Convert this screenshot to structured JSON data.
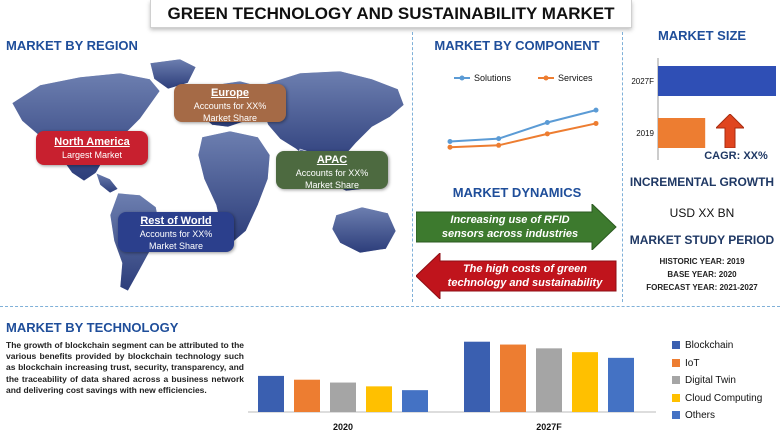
{
  "title": "GREEN TECHNOLOGY AND SUSTAINABILITY MARKET",
  "region": {
    "title": "MARKET BY REGION",
    "north_america": {
      "name": "North America",
      "desc": "Largest Market"
    },
    "europe": {
      "name": "Europe",
      "desc1": "Accounts for XX%",
      "desc2": "Market Share"
    },
    "apac": {
      "name": "APAC",
      "desc1": "Accounts for XX%",
      "desc2": "Market Share"
    },
    "rest_of_world": {
      "name": "Rest of World",
      "desc1": "Accounts for XX%",
      "desc2": "Market Share"
    }
  },
  "component": {
    "title": "MARKET BY COMPONENT",
    "chart_data": {
      "type": "line",
      "title": "",
      "x": [
        1,
        2,
        3,
        4
      ],
      "series": [
        {
          "name": "Solutions",
          "color": "#5b9bd5",
          "values": [
            3.0,
            3.3,
            5.0,
            6.3
          ]
        },
        {
          "name": "Services",
          "color": "#ed7d31",
          "values": [
            2.4,
            2.6,
            3.8,
            4.9
          ]
        }
      ],
      "ylim": [
        0,
        8
      ]
    }
  },
  "size": {
    "title": "MARKET SIZE",
    "cagr": "CAGR: XX%",
    "chart_data": {
      "type": "bar",
      "categories": [
        "2027F",
        "2019"
      ],
      "values": [
        100,
        40
      ],
      "colors": [
        "#2f4fb5",
        "#ed7d31"
      ],
      "xlim": [
        0,
        100
      ]
    }
  },
  "dynamics": {
    "title": "MARKET DYNAMICS",
    "driver": "Increasing use of RFID sensors across industries",
    "challenge": "The high costs of green technology and sustainability  solutions",
    "driver_color": "#3d7a2e",
    "challenge_color": "#c0141c"
  },
  "incremental": {
    "title": "INCREMENTAL GROWTH",
    "value": "USD XX BN"
  },
  "study_period": {
    "title": "MARKET STUDY PERIOD",
    "historic": "HISTORIC YEAR: 2019",
    "base": "BASE YEAR: 2020",
    "forecast": "FORECAST YEAR: 2021-2027"
  },
  "technology": {
    "title": "MARKET BY TECHNOLOGY",
    "text": "The growth of blockchain segment can be attributed to the various benefits provided by blockchain technology such as blockchain increasing trust, security, transparency, and the traceability of data shared across a business network and delivering cost savings with new efficiencies.",
    "chart_data": {
      "type": "bar",
      "categories": [
        "2020",
        "2027F"
      ],
      "series": [
        {
          "name": "Blockchain",
          "color": "#3a5fb0",
          "values": [
            38,
            74
          ]
        },
        {
          "name": "IoT",
          "color": "#ed7d31",
          "values": [
            34,
            71
          ]
        },
        {
          "name": "Digital Twin",
          "color": "#a5a5a5",
          "values": [
            31,
            67
          ]
        },
        {
          "name": "Cloud Computing",
          "color": "#ffc000",
          "values": [
            27,
            63
          ]
        },
        {
          "name": "Others",
          "color": "#4472c4",
          "values": [
            23,
            57
          ]
        }
      ],
      "ylim": [
        0,
        80
      ]
    }
  }
}
